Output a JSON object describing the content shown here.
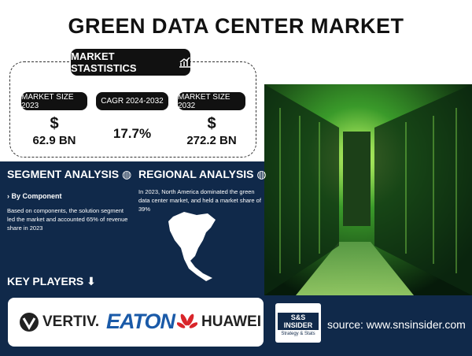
{
  "header": {
    "title": "GREEN DATA CENTER MARKET"
  },
  "statistics": {
    "label": "MARKET STASTISTICS",
    "items": [
      {
        "label": "MARKET SIZE 2023",
        "symbol": "$",
        "value": "62.9 BN"
      },
      {
        "label": "CAGR 2024-2032",
        "value": "17.7%"
      },
      {
        "label": "MARKET SIZE 2032",
        "symbol": "$",
        "value": "272.2 BN"
      }
    ]
  },
  "segment_analysis": {
    "title": "SEGMENT ANALYSIS",
    "subtitle": "› By Component",
    "text": "Based on components, the solution segment led the market and accounted 65% of revenue share in 2023"
  },
  "regional_analysis": {
    "title": "REGIONAL ANALYSIS",
    "text": "In 2023, North America dominated the green data center market, and held a market share of 39%"
  },
  "key_players": {
    "title": "KEY PLAYERS",
    "companies": [
      "VERTIV.",
      "EATON",
      "HUAWEI"
    ]
  },
  "brand": {
    "name": "S&S INSIDER",
    "tagline": "Strategy & Stats"
  },
  "source": "source: www.snsinsider.com"
}
